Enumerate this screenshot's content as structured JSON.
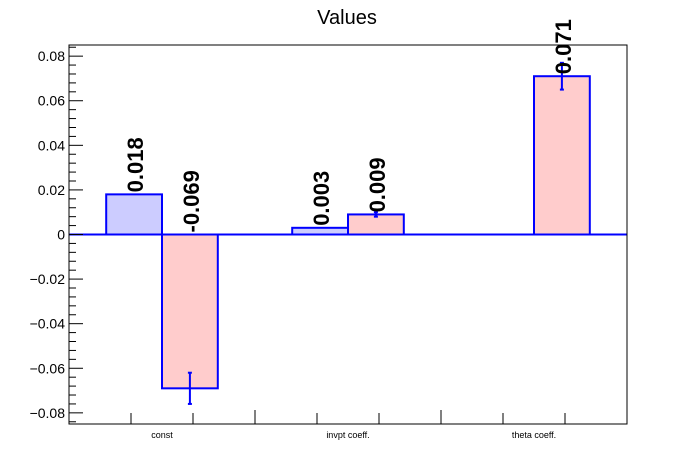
{
  "chart_data": {
    "type": "bar",
    "title": "Values",
    "xlabel": "",
    "ylabel": "",
    "categories": [
      "const",
      "invpt coeff.",
      "theta coeff."
    ],
    "ylim": [
      -0.085,
      0.085
    ],
    "yticks": [
      -0.08,
      -0.06,
      -0.04,
      -0.02,
      0,
      0.02,
      0.04,
      0.06,
      0.08
    ],
    "ytick_labels": [
      "−0.08",
      "−0.06",
      "−0.04",
      "−0.02",
      "0",
      "0.02",
      "0.04",
      "0.06",
      "0.08"
    ],
    "grid": false,
    "legend": "none",
    "series": [
      {
        "values": [
          0.018,
          0.003,
          null
        ],
        "labels": [
          "0.018",
          "0.003",
          ""
        ],
        "errors": [
          null,
          null,
          null
        ],
        "fill_color": "#ccccff"
      },
      {
        "values": [
          -0.069,
          0.009,
          0.071
        ],
        "labels": [
          "-0.069",
          "0.009",
          "0.071"
        ],
        "errors": [
          0.007,
          0.001,
          0.006
        ],
        "fill_color": "#ffcccc"
      }
    ],
    "bar_edge_color": "#0000ff",
    "error_color": "#0000ff",
    "zero_line_color": "#0000ff"
  }
}
